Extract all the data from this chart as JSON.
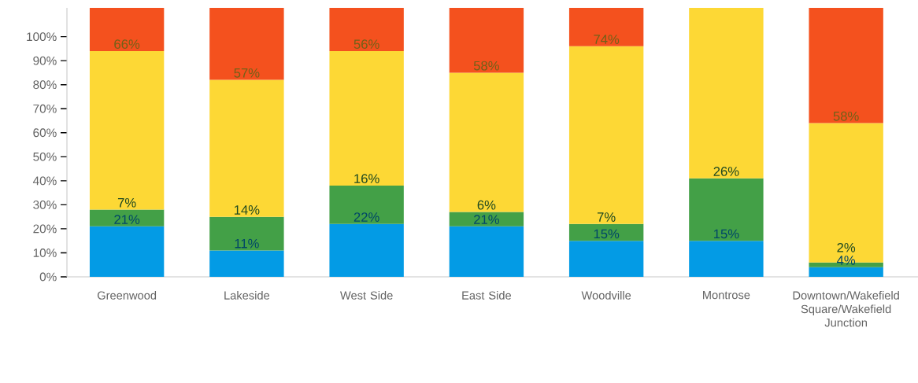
{
  "chart_data": {
    "type": "bar",
    "stacked": true,
    "categories": [
      "Greenwood",
      "Lakeside",
      "West Side",
      "East Side",
      "Woodville",
      "Montrose",
      "Downtown/Wakefield Square/Wakefield Junction"
    ],
    "series": [
      {
        "color": "#039be5",
        "values": [
          21,
          11,
          22,
          21,
          15,
          15,
          4
        ],
        "value_labels": [
          "21%",
          "11%",
          "22%",
          "21%",
          "15%",
          "15%",
          "4%"
        ]
      },
      {
        "color": "#43a047",
        "values": [
          7,
          14,
          16,
          6,
          7,
          26,
          2
        ],
        "value_labels": [
          "7%",
          "14%",
          "16%",
          "6%",
          "7%",
          "26%",
          "2%"
        ]
      },
      {
        "color": "#fdd835",
        "values": [
          66,
          57,
          56,
          58,
          74,
          71,
          58
        ],
        "value_labels": [
          "66%",
          "57%",
          "56%",
          "58%",
          "74%",
          null,
          "58%"
        ]
      },
      {
        "color": "#f4511e",
        "values": [
          18,
          30,
          18,
          27,
          16,
          null,
          48
        ]
      }
    ],
    "ylim": [
      0,
      112
    ],
    "yticks": [
      {
        "value": 0,
        "label": "0%"
      },
      {
        "value": 10,
        "label": "10%"
      },
      {
        "value": 20,
        "label": "20%"
      },
      {
        "value": 30,
        "label": "30%"
      },
      {
        "value": 40,
        "label": "40%"
      },
      {
        "value": 50,
        "label": "50%"
      },
      {
        "value": 60,
        "label": "60%"
      },
      {
        "value": 70,
        "label": "70%"
      },
      {
        "value": 80,
        "label": "80%"
      },
      {
        "value": 90,
        "label": "90%"
      },
      {
        "value": 100,
        "label": "100%"
      }
    ]
  }
}
